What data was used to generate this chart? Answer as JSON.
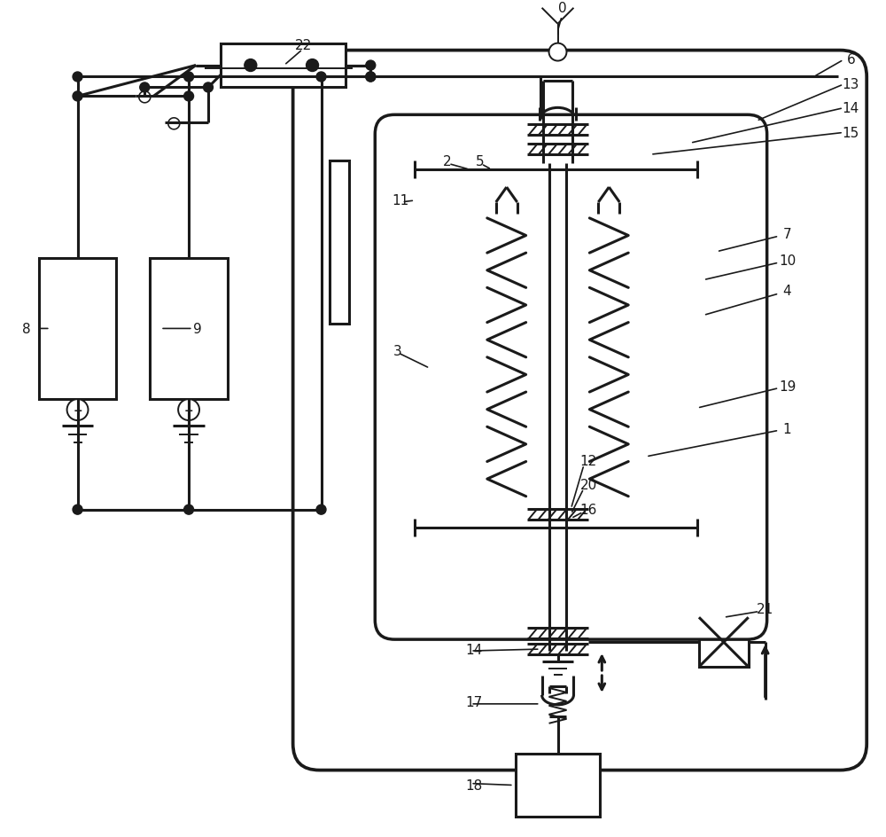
{
  "bg_color": "#ffffff",
  "lc": "#1a1a1a",
  "lw": 2.2,
  "lw_thin": 1.4,
  "fig_w": 10.0,
  "fig_h": 9.45,
  "xlim": [
    0,
    10
  ],
  "ylim": [
    0,
    9.45
  ]
}
